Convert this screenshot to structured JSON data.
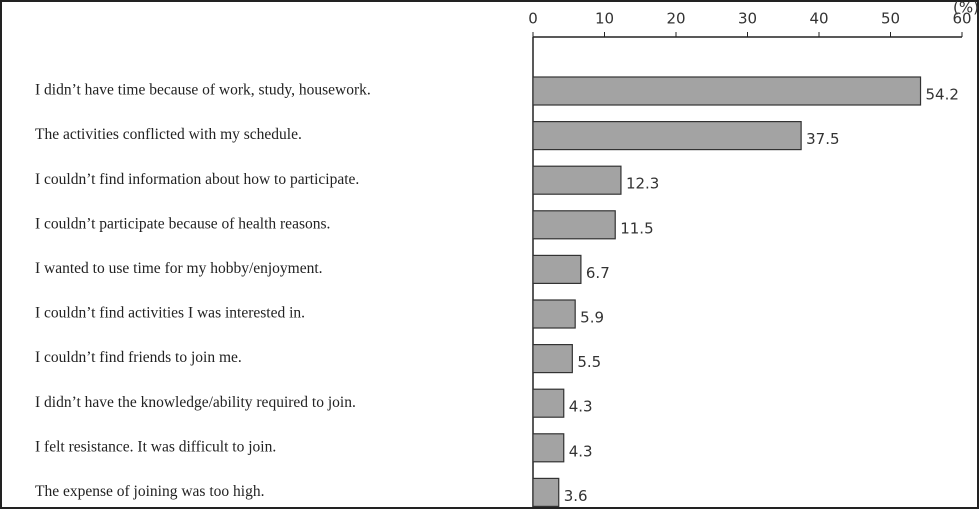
{
  "chart_data": {
    "type": "bar",
    "orientation": "horizontal",
    "xlabel": "(%)",
    "categories": [
      "I didn’t have time because of work, study, housework.",
      "The activities conflicted with my schedule.",
      "I couldn’t find information about how to participate.",
      "I couldn’t participate because of health reasons.",
      "I wanted to use time for my hobby/enjoyment.",
      "I couldn’t find activities I was interested in.",
      "I couldn’t find friends to join me.",
      "I didn’t have the knowledge/ability required to join.",
      "I felt resistance. It was difficult to join.",
      "The expense of joining was too high."
    ],
    "values": [
      54.2,
      37.5,
      12.3,
      11.5,
      6.7,
      5.9,
      5.5,
      4.3,
      4.3,
      3.6
    ],
    "color": "#a3a3a3",
    "xlim": [
      0,
      60
    ],
    "xticks": [
      0,
      10,
      20,
      30,
      40,
      50,
      60
    ]
  }
}
